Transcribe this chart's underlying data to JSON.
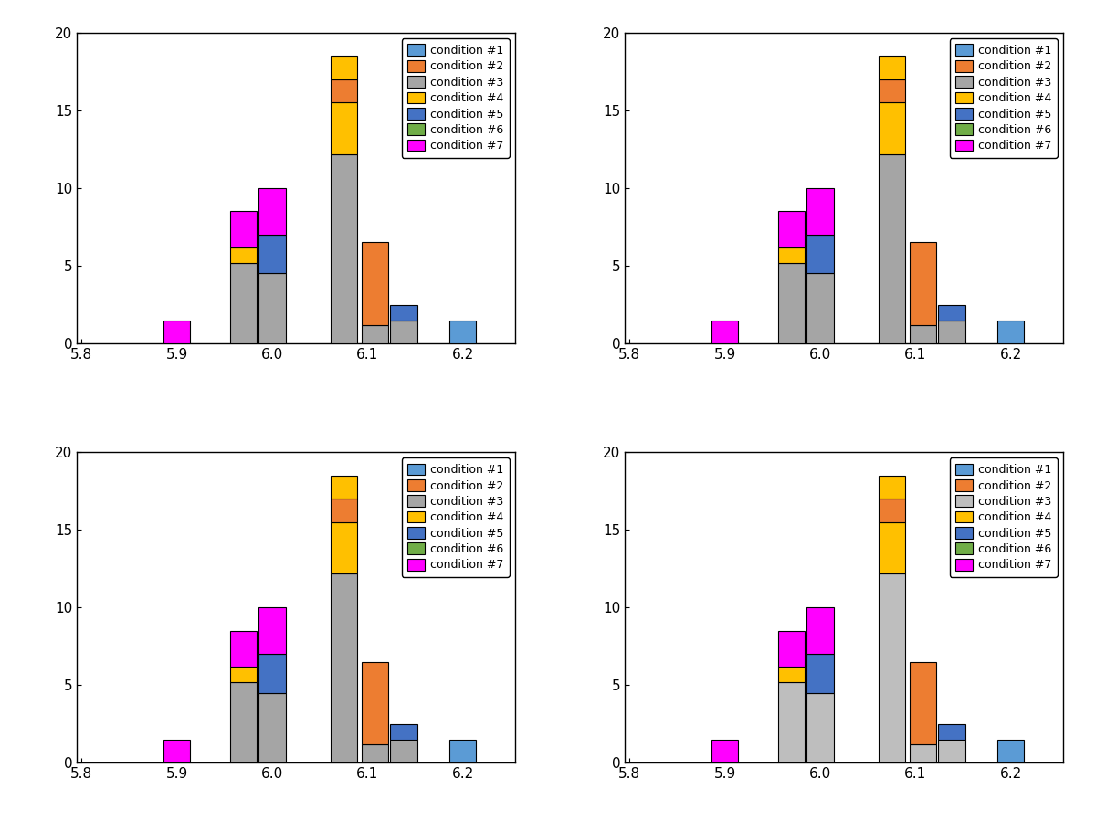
{
  "colors": {
    "c1": "#5B9BD5",
    "c2": "#ED7D31",
    "c3": "#A5A5A5",
    "c4": "#FFC000",
    "c5": "#4472C4",
    "c6": "#70AD47",
    "c7": "#FF00FF"
  },
  "xlim": [
    5.795,
    6.255
  ],
  "ylim": [
    0,
    20
  ],
  "xticks": [
    5.8,
    5.9,
    6.0,
    6.1,
    6.2
  ],
  "yticks": [
    0,
    5,
    10,
    15,
    20
  ],
  "legend_labels": [
    "condition #1",
    "condition #2",
    "condition #3",
    "condition #4",
    "condition #5",
    "condition #6",
    "condition #7"
  ],
  "background_color": "#FFFFFF",
  "edge_color": "#000000",
  "bar_width": 0.028,
  "bar_specs": [
    {
      "x": 5.9,
      "segs": [
        [
          "c7",
          1.5
        ]
      ]
    },
    {
      "x": 5.97,
      "segs": [
        [
          "c3",
          5.2
        ],
        [
          "c4",
          1.0
        ],
        [
          "c7",
          2.3
        ]
      ]
    },
    {
      "x": 6.0,
      "segs": [
        [
          "c3",
          4.5
        ],
        [
          "c5",
          2.5
        ],
        [
          "c7",
          3.0
        ]
      ]
    },
    {
      "x": 6.075,
      "segs": [
        [
          "c3",
          12.2
        ],
        [
          "c4",
          3.3
        ],
        [
          "c2",
          1.5
        ],
        [
          "c4",
          1.5
        ]
      ]
    },
    {
      "x": 6.108,
      "segs": [
        [
          "c3",
          1.2
        ],
        [
          "c2",
          5.3
        ]
      ]
    },
    {
      "x": 6.138,
      "segs": [
        [
          "c3",
          1.5
        ],
        [
          "c5",
          1.0
        ]
      ]
    },
    {
      "x": 6.2,
      "segs": [
        [
          "c1",
          1.5
        ]
      ]
    }
  ],
  "subplot_legend_colors": [
    [
      "#5B9BD5",
      "#ED7D31",
      "#A5A5A5",
      "#FFC000",
      "#4472C4",
      "#70AD47",
      "#FF00FF"
    ],
    [
      "#5B9BD5",
      "#ED7D31",
      "#A5A5A5",
      "#FFC000",
      "#4472C4",
      "#70AD47",
      "#FF00FF"
    ],
    [
      "#5B9BD5",
      "#ED7D31",
      "#A5A5A5",
      "#FFC000",
      "#4472C4",
      "#70AD47",
      "#FF00FF"
    ],
    [
      "#5B9BD5",
      "#ED7D31",
      "#BEBEBE",
      "#FFC000",
      "#4472C4",
      "#70AD47",
      "#FF00FF"
    ]
  ]
}
